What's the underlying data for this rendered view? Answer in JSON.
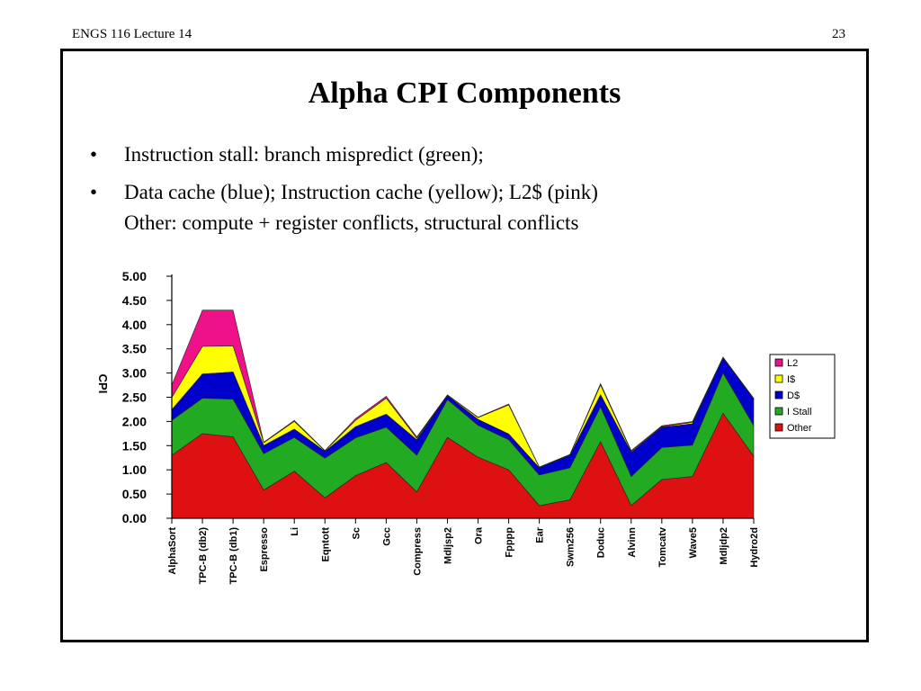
{
  "header": {
    "course": "ENGS 116  Lecture 14",
    "page": "23"
  },
  "slide": {
    "title": "Alpha CPI Components",
    "bullets": [
      "Instruction stall:  branch mispredict (green);",
      "Data cache (blue);  Instruction cache (yellow);  L2$ (pink)"
    ],
    "bullet2_line2": "Other:  compute + register conflicts, structural conflicts",
    "bullet_char": "•"
  },
  "chart_data": {
    "type": "area",
    "stacked": true,
    "ylabel": "CPI",
    "ylim": [
      0,
      5
    ],
    "yticks": [
      "0.00",
      "0.50",
      "1.00",
      "1.50",
      "2.00",
      "2.50",
      "3.00",
      "3.50",
      "4.00",
      "4.50",
      "5.00"
    ],
    "categories": [
      "AlphaSort",
      "TPC-B (db2)",
      "TPC-B (db1)",
      "Espresso",
      "Li",
      "Eqntott",
      "Sc",
      "Gcc",
      "Compress",
      "Mdljsp2",
      "Ora",
      "Fpppp",
      "Ear",
      "Swm256",
      "Doduc",
      "Alvinn",
      "Tomcatv",
      "Wave5",
      "Mdljdp2",
      "Hydro2d"
    ],
    "series": [
      {
        "name": "Other",
        "color": "#dd1111",
        "values": [
          1.3,
          1.75,
          1.68,
          0.58,
          0.97,
          0.42,
          0.88,
          1.15,
          0.54,
          1.67,
          1.26,
          1.0,
          0.26,
          0.38,
          1.58,
          0.26,
          0.8,
          0.86,
          2.17,
          1.28
        ]
      },
      {
        "name": "I Stall",
        "color": "#22aa22",
        "values": [
          0.72,
          0.73,
          0.78,
          0.75,
          0.7,
          0.82,
          0.78,
          0.73,
          0.76,
          0.78,
          0.66,
          0.62,
          0.63,
          0.66,
          0.72,
          0.6,
          0.66,
          0.65,
          0.83,
          0.63
        ]
      },
      {
        "name": "D$",
        "color": "#0000cc",
        "values": [
          0.22,
          0.5,
          0.56,
          0.17,
          0.17,
          0.14,
          0.23,
          0.27,
          0.32,
          0.08,
          0.12,
          0.12,
          0.15,
          0.26,
          0.25,
          0.5,
          0.42,
          0.44,
          0.31,
          0.55
        ]
      },
      {
        "name": "I$",
        "color": "#ffff00",
        "values": [
          0.25,
          0.57,
          0.54,
          0.06,
          0.16,
          0.01,
          0.13,
          0.33,
          0.03,
          0.01,
          0.04,
          0.6,
          0.01,
          0.01,
          0.2,
          0.02,
          0.01,
          0.03,
          0.01,
          0.01
        ]
      },
      {
        "name": "L2",
        "color": "#ee1188",
        "values": [
          0.26,
          0.75,
          0.74,
          0.01,
          0.02,
          0.01,
          0.04,
          0.04,
          0.03,
          0.01,
          0.01,
          0.02,
          0.01,
          0.01,
          0.03,
          0.02,
          0.02,
          0.02,
          0.01,
          0.01
        ]
      }
    ],
    "legend": {
      "position": "right",
      "order": [
        "L2",
        "I$",
        "D$",
        "I Stall",
        "Other"
      ]
    },
    "grid": false
  }
}
